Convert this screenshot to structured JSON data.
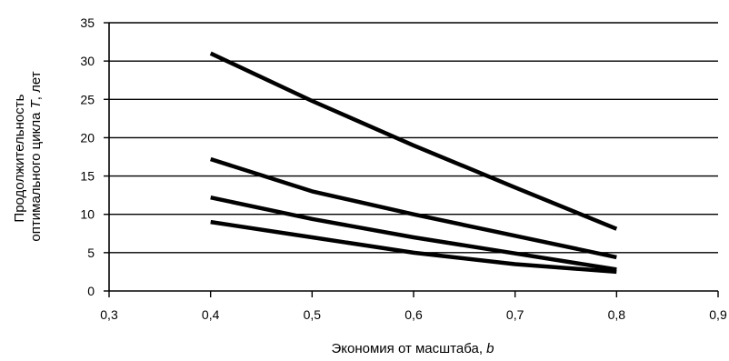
{
  "chart_data": {
    "type": "line",
    "title": "",
    "xlabel": {
      "text": "Экономия от масштаба, ",
      "var": "b"
    },
    "ylabel": {
      "line1": "Продолжительность",
      "line2": "оптимального цикла ",
      "var": "T",
      "suffix": ", лет"
    },
    "xlim": [
      0.3,
      0.9
    ],
    "ylim": [
      0,
      35
    ],
    "x_ticks": [
      "0,3",
      "0,4",
      "0,5",
      "0,6",
      "0,7",
      "0,8",
      "0,9"
    ],
    "x_tick_values": [
      0.3,
      0.4,
      0.5,
      0.6,
      0.7,
      0.8,
      0.9
    ],
    "y_ticks": [
      "0",
      "5",
      "10",
      "15",
      "20",
      "25",
      "30",
      "35"
    ],
    "y_tick_values": [
      0,
      5,
      10,
      15,
      20,
      25,
      30,
      35
    ],
    "grid": "horizontal",
    "legend": "none",
    "line_color": "#000000",
    "series": [
      {
        "x": [
          0.4,
          0.5,
          0.6,
          0.7,
          0.8
        ],
        "values": [
          31,
          24.8,
          19,
          13.5,
          8.1
        ]
      },
      {
        "x": [
          0.4,
          0.5,
          0.6,
          0.7,
          0.8
        ],
        "values": [
          17.2,
          13,
          10,
          7.2,
          4.4
        ]
      },
      {
        "x": [
          0.4,
          0.5,
          0.6,
          0.7,
          0.8
        ],
        "values": [
          12.2,
          9.4,
          7,
          4.9,
          2.8
        ]
      },
      {
        "x": [
          0.4,
          0.5,
          0.6,
          0.7,
          0.8
        ],
        "values": [
          9,
          7,
          5,
          3.5,
          2.5
        ]
      }
    ]
  }
}
